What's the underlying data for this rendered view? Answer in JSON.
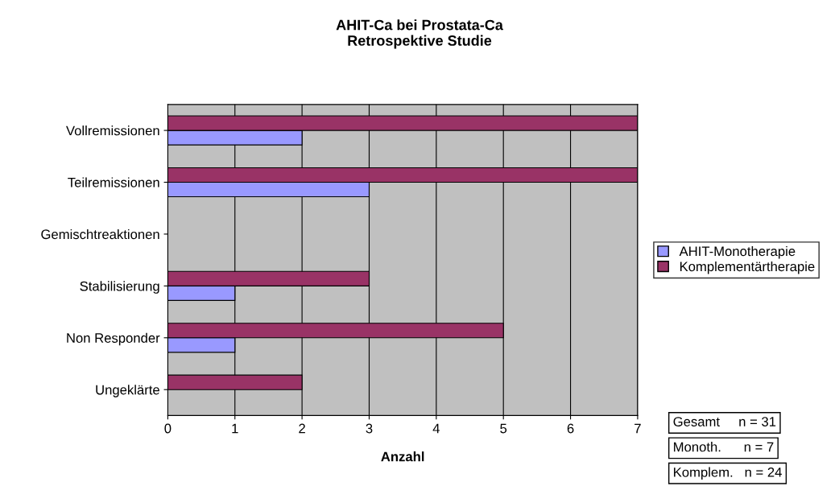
{
  "chart_data": {
    "type": "bar",
    "orientation": "horizontal",
    "title": "AHIT-Ca bei Prostata-Ca\nRetrospektive Studie",
    "xlabel": "Anzahl",
    "categories": [
      "Vollremissionen",
      "Teilremissionen",
      "Gemischtreaktionen",
      "Stabilisierung",
      "Non Responder",
      "Ungeklärte"
    ],
    "series": [
      {
        "name": "AHIT-Monotherapie",
        "color": "#9999ff",
        "values": [
          2,
          3,
          0,
          1,
          1,
          0
        ]
      },
      {
        "name": "Komplementärtherapie",
        "color": "#993366",
        "values": [
          7,
          7,
          0,
          3,
          5,
          2
        ]
      }
    ],
    "xlim": [
      0,
      7
    ],
    "xticks": [
      0,
      1,
      2,
      3,
      4,
      5,
      6,
      7
    ],
    "grid": "x",
    "legend": "right",
    "annotations": [
      "Gesamt     n = 31",
      "Monoth.      n = 7",
      "Komplem.   n = 24"
    ]
  }
}
